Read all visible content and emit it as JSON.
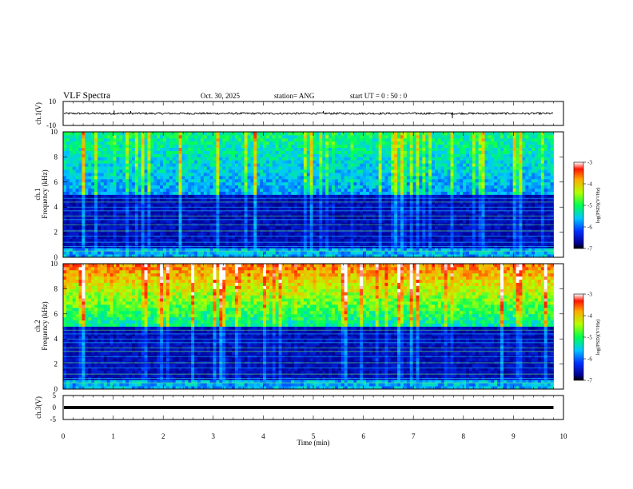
{
  "header": {
    "title": "VLF Spectra",
    "date": "Oct. 30, 2025",
    "station": "station= ANG",
    "start": "start UT =  0 : 50 : 0"
  },
  "chart_data": [
    {
      "type": "line",
      "panel": "ch1-waveform",
      "ylabel": "ch.1(V)",
      "ylim": [
        -10,
        10
      ],
      "y_ticks": [
        "10",
        "-10"
      ],
      "baseline": 0,
      "spikes": [
        {
          "x": 1.02,
          "y": 2.5
        },
        {
          "x": 1.35,
          "y": 2
        },
        {
          "x": 5.2,
          "y": 2
        },
        {
          "x": 7.78,
          "y": -4
        }
      ],
      "color": "#000000"
    },
    {
      "type": "heatmap",
      "panel": "ch1-spectrogram",
      "ylabel": "ch.1",
      "ylabel2": "Frequency (kHz)",
      "ylim": [
        0,
        10
      ],
      "y_ticks": [
        "0",
        "2",
        "4",
        "6",
        "8",
        "10"
      ],
      "upper_band_intensity": 0.45,
      "colorbar": {
        "label": "log(PSD)(V²/Hz)",
        "ticks": [
          "-3",
          "-4",
          "-5",
          "-6",
          "-7"
        ],
        "range": [
          -7,
          -3
        ]
      }
    },
    {
      "type": "heatmap",
      "panel": "ch2-spectrogram",
      "ylabel": "ch.2",
      "ylabel2": "Frequency (kHz)",
      "ylim": [
        0,
        10
      ],
      "y_ticks": [
        "0",
        "2",
        "4",
        "6",
        "8",
        "10"
      ],
      "upper_band_intensity": 0.8,
      "colorbar": {
        "label": "log(PSD)(V²/Hz)",
        "ticks": [
          "-3",
          "-4",
          "-5",
          "-6",
          "-7"
        ],
        "range": [
          -7,
          -3
        ]
      }
    },
    {
      "type": "line",
      "panel": "ch3-waveform",
      "ylabel": "ch.3(V)",
      "ylim": [
        -5,
        5
      ],
      "y_ticks": [
        "5",
        "0",
        "-5"
      ],
      "baseline": 0,
      "color": "#000000"
    }
  ],
  "xaxis": {
    "label": "Time (min)",
    "xlim": [
      0,
      10
    ],
    "ticks": [
      "0",
      "1",
      "2",
      "3",
      "4",
      "5",
      "6",
      "7",
      "8",
      "9",
      "10"
    ],
    "data_end": 9.8
  }
}
